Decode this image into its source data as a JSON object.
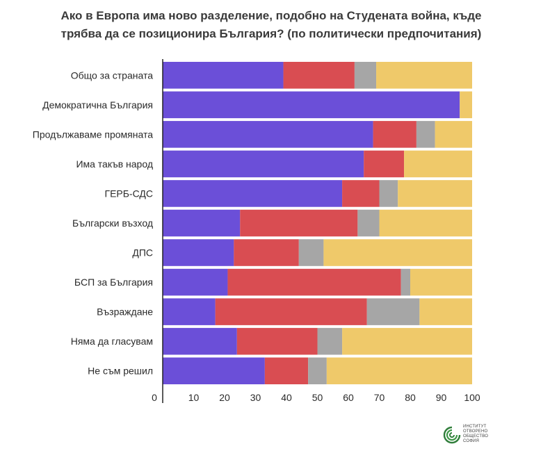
{
  "chart_data": {
    "type": "bar",
    "orientation": "horizontal",
    "stacked": true,
    "title_lines": [
      "Ако в Европа има ново разделение, подобно на Студената война, къде",
      "трябва да се позиционира България? (по политически предпочитания)"
    ],
    "categories": [
      "Общо за страната",
      "Демократична България",
      "Продължаваме промяната",
      "Има такъв народ",
      "ГЕРБ-СДС",
      "Български възход",
      "ДПС",
      "БСП за България",
      "Възраждане",
      "Няма да гласувам",
      "Не съм решил"
    ],
    "series": [
      {
        "color": "#6b4fd8",
        "values": [
          39,
          96,
          68,
          65,
          58,
          25,
          23,
          21,
          17,
          24,
          33
        ]
      },
      {
        "color": "#d94d52",
        "values": [
          23,
          0,
          14,
          13,
          12,
          38,
          21,
          56,
          49,
          26,
          14
        ]
      },
      {
        "color": "#a6a6a6",
        "values": [
          7,
          0,
          6,
          0,
          6,
          7,
          8,
          3,
          17,
          8,
          6
        ]
      },
      {
        "color": "#efc96a",
        "values": [
          31,
          4,
          12,
          22,
          24,
          30,
          48,
          20,
          17,
          42,
          47
        ]
      }
    ],
    "xlim": [
      0,
      100
    ],
    "xticks": [
      0,
      10,
      20,
      30,
      40,
      50,
      60,
      70,
      80,
      90,
      100
    ],
    "grid": false,
    "legend": "none"
  },
  "logo": {
    "text_lines": [
      "ИНСТИТУТ",
      "ОТВОРЕНО",
      "ОБЩЕСТВО",
      "СОФИЯ"
    ]
  }
}
